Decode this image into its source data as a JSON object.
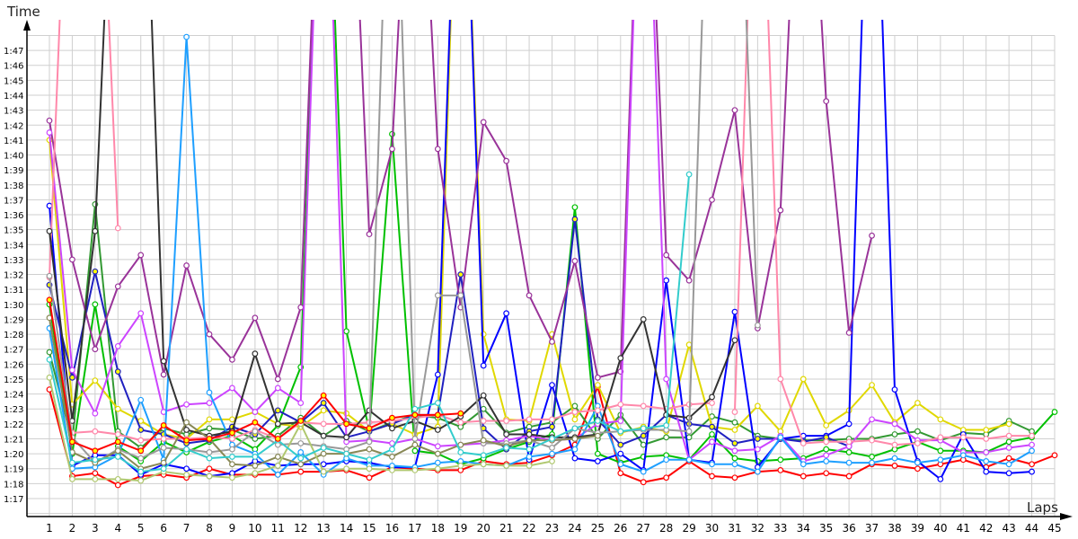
{
  "chart_data": {
    "type": "line",
    "title": "",
    "xlabel": "Laps",
    "ylabel": "Time",
    "grid": true,
    "x_ticks": [
      1,
      2,
      3,
      4,
      5,
      6,
      7,
      8,
      9,
      10,
      11,
      12,
      13,
      14,
      15,
      16,
      17,
      18,
      19,
      20,
      21,
      22,
      23,
      24,
      25,
      26,
      27,
      28,
      29,
      30,
      31,
      32,
      33,
      34,
      35,
      36,
      37,
      38,
      39,
      40,
      41,
      42,
      43,
      44,
      45
    ],
    "y_ticks": [
      "1:17",
      "1:18",
      "1:19",
      "1:20",
      "1:21",
      "1:22",
      "1:23",
      "1:24",
      "1:25",
      "1:26",
      "1:27",
      "1:28",
      "1:29",
      "1:30",
      "1:31",
      "1:32",
      "1:33",
      "1:34",
      "1:35",
      "1:36",
      "1:37",
      "1:38",
      "1:39",
      "1:40",
      "1:41",
      "1:42",
      "1:43",
      "1:44",
      "1:45",
      "1:46",
      "1:47"
    ],
    "ylim": [
      "1:15.8",
      "1:48.8"
    ],
    "xlim": [
      0,
      45
    ],
    "series": [
      {
        "color": "#ff0000",
        "marker_fill": "#ffffff",
        "values": [
          "1:24.3",
          "1:18.5",
          "1:18.7",
          "1:17.9",
          "1:18.5",
          "1:18.6",
          "1:18.4",
          "1:19.0",
          "1:18.6",
          "1:18.6",
          "1:18.6",
          "1:18.8",
          "1:18.8",
          "1:18.9",
          "1:18.4",
          "1:19.1",
          "1:19.0",
          "1:18.9",
          "1:18.9",
          "1:19.5",
          "1:19.3",
          "1:19.4",
          "1:19.9",
          "1:20.6",
          "1:24.5",
          "1:18.7",
          "1:18.1",
          "1:18.4",
          "1:19.5",
          "1:18.5",
          "1:18.4",
          "1:18.8",
          "1:18.9",
          "1:18.5",
          "1:18.7",
          "1:18.5",
          "1:19.3",
          "1:19.2",
          "1:19.0",
          "1:19.3",
          "1:19.6",
          "1:19.1",
          "1:19.7",
          "1:19.3",
          "1:19.9"
        ]
      },
      {
        "color": "#00c000",
        "marker_fill": "#ffffff",
        "values": [
          "1:30.0",
          "1:20.0",
          "1:30.0",
          "1:20.5",
          "1:19.5",
          "1:20.8",
          "1:20.1",
          "1:20.8",
          "1:21.2",
          "1:20.3",
          "1:21.9",
          "1:25.8",
          "2:10",
          "1:28.2",
          "1:21.6",
          "1:41.4",
          "1:20.2",
          "1:20.0",
          "1:19.3",
          "1:19.7",
          "1:20.3",
          "1:20.8",
          "1:21.3",
          "1:36.5",
          "1:20.0",
          "1:19.4",
          "1:19.8",
          "1:19.9",
          "1:19.6",
          "1:21.3",
          "1:19.7",
          "1:19.5",
          "1:19.6",
          "1:19.7",
          "1:20.3",
          "1:20.1",
          "1:19.8",
          "1:20.3",
          "1:20.8",
          "1:20.2",
          "1:20.2",
          "1:20.1",
          "1:20.8",
          "1:21.1",
          "1:22.8"
        ]
      },
      {
        "color": "#339933",
        "marker_fill": "#ffffff",
        "values": [
          "1:26.8",
          "1:20.8",
          "1:36.7",
          "1:21.5",
          "1:20.4",
          "1:21.7",
          "1:21.3",
          "1:21.7",
          "1:21.6",
          "1:21.0",
          "1:21.2",
          "1:22.4",
          "1:21.2",
          "1:22.2",
          "1:21.5",
          "1:22.1",
          "1:22.6",
          "1:22.4",
          "1:21.8",
          "1:23.0",
          "1:21.4",
          "1:21.8",
          "1:22.1",
          "1:23.2",
          "1:21.0",
          "1:22.6",
          "1:20.6",
          "1:21.1",
          "1:21.1",
          "1:22.5",
          "1:22.1",
          "1:21.2",
          "1:21.0",
          "1:20.9",
          "1:20.9",
          "1:21.0",
          "1:21.0",
          "1:21.3",
          "1:21.5",
          "1:20.9",
          "1:21.4",
          "1:21.3",
          "1:22.2",
          "1:21.5",
          null
        ]
      },
      {
        "color": "#e0d800",
        "marker_fill": "#ffffff",
        "values": [
          "1:41.0",
          "1:23.3",
          "1:24.9",
          "1:23.0",
          "1:22.2",
          "1:21.3",
          "1:21.0",
          "1:22.3",
          "1:22.3",
          "1:22.8",
          "1:22.0",
          "1:21.8",
          "1:22.9",
          "1:22.7",
          "1:21.5",
          "1:22.0",
          "1:21.3",
          "1:21.8",
          "2:10",
          "1:28.0",
          "1:22.3",
          "1:22.2",
          "1:28.0",
          "1:22.3",
          "1:24.6",
          "1:21.4",
          "1:21.8",
          "1:21.5",
          "1:27.3",
          "1:21.8",
          "1:21.6",
          "1:23.2",
          "1:21.5",
          "1:25.0",
          "1:21.9",
          "1:22.9",
          "1:24.6",
          "1:22.1",
          "1:23.4",
          "1:22.3",
          "1:21.6",
          "1:21.6",
          "1:22.0",
          null,
          null
        ]
      },
      {
        "color": "#0000ff",
        "marker_fill": "#ffffff",
        "values": [
          "1:36.6",
          "1:19.2",
          "1:19.9",
          "1:19.9",
          "1:18.6",
          "1:19.3",
          "1:19.0",
          "1:18.5",
          "1:18.7",
          "1:19.5",
          "1:19.2",
          "1:19.3",
          "1:19.3",
          "1:19.5",
          "1:19.4",
          "1:19.1",
          "1:19.1",
          "1:25.3",
          "2:10",
          "1:25.9",
          "1:29.4",
          "1:19.6",
          "1:24.6",
          "1:19.7",
          "1:19.5",
          "1:20.0",
          "1:18.9",
          "1:31.6",
          "1:19.6",
          "1:19.4",
          "1:29.5",
          "1:19.1",
          "1:21.0",
          "1:21.2",
          "1:21.2",
          "1:22.0",
          "2:10",
          "1:24.3",
          "1:19.5",
          "1:18.3",
          "1:21.3",
          "1:18.8",
          "1:18.7",
          "1:18.8",
          null
        ]
      },
      {
        "color": "#2020c0",
        "marker_fill": "#ffff00",
        "values": [
          "1:31.3",
          "1:25.1",
          "1:32.2",
          "1:25.5",
          "1:21.6",
          "1:21.3",
          "1:20.7",
          "1:20.9",
          "1:21.8",
          "1:21.3",
          "1:22.9",
          "1:22.1",
          "1:23.4",
          "1:21.1",
          "1:21.5",
          "1:22.0",
          "1:22.6",
          "1:22.6",
          "1:32.0",
          "1:21.7",
          "1:20.3",
          "1:21.5",
          "1:21.8",
          "1:35.7",
          "1:22.3",
          "1:20.6",
          "1:21.2",
          "1:22.6",
          "1:22.0",
          "1:21.8",
          "1:20.7",
          "1:21.0",
          "1:21.0",
          "1:20.8",
          "1:21.1",
          "1:20.5",
          null,
          null,
          null,
          null,
          null,
          null,
          null,
          null,
          null
        ]
      },
      {
        "color": "#993399",
        "marker_fill": "#ffffff",
        "values": [
          "1:42.3",
          "1:33.0",
          "1:27.0",
          "1:31.2",
          "1:33.3",
          "1:25.3",
          "1:32.6",
          "1:28.0",
          "1:26.3",
          "1:29.1",
          "1:25.0",
          "1:29.8",
          "2:10",
          "2:10",
          "1:34.7",
          "1:40.4",
          "2:10",
          "1:40.4",
          "1:29.8",
          "1:42.2",
          "1:39.6",
          "1:30.6",
          "1:27.5",
          "1:32.9",
          "1:25.1",
          "1:25.5",
          "2:10",
          "1:33.3",
          "1:31.6",
          "1:37.0",
          "1:43.0",
          "1:28.4",
          "1:36.3",
          "2:10",
          "1:43.6",
          "1:28.1",
          "1:34.6",
          null,
          null,
          null,
          null,
          null,
          null,
          null,
          null
        ]
      },
      {
        "color": "#cc44ff",
        "marker_fill": "#ffffff",
        "values": [
          "1:41.5",
          "1:25.6",
          "1:22.7",
          "1:27.2",
          "1:29.4",
          "1:22.8",
          "1:23.3",
          "1:23.4",
          "1:24.4",
          "1:22.8",
          "1:24.4",
          "1:23.4",
          "2:10",
          "1:20.8",
          "1:20.9",
          "1:20.7",
          "1:21.0",
          "1:20.5",
          "1:20.6",
          "1:20.7",
          "1:20.9",
          "1:21.2",
          "1:20.9",
          "1:21.0",
          "1:22.0",
          "1:22.2",
          "2:10",
          "1:25.0",
          "1:19.6",
          "1:20.8",
          "1:20.2",
          "1:20.3",
          "1:21.2",
          "1:19.5",
          "1:19.9",
          "1:20.5",
          "1:22.3",
          "1:22.0",
          "1:20.9",
          "1:20.9",
          "1:20.1",
          "1:20.1",
          "1:20.4",
          "1:20.6",
          null
        ]
      },
      {
        "color": "#1e9fff",
        "marker_fill": "#ffffff",
        "values": [
          "1:28.4",
          "1:19.0",
          "1:19.1",
          "1:19.9",
          "1:23.6",
          "1:19.6",
          "1:47.9",
          "1:24.1",
          "1:20.6",
          "1:20.0",
          "1:18.6",
          "1:20.1",
          "1:18.6",
          "1:19.7",
          "1:19.2",
          "1:19.2",
          "1:19.1",
          "1:19.4",
          "1:19.5",
          "1:19.3",
          "1:19.2",
          "1:19.8",
          "1:20.0",
          "1:20.3",
          "1:23.2",
          "1:19.3",
          "1:18.8",
          "1:19.6",
          "1:19.6",
          "1:19.3",
          "1:19.3",
          "1:18.8",
          "1:21.1",
          "1:19.3",
          "1:19.5",
          "1:19.4",
          "1:19.4",
          "1:19.7",
          "1:19.4",
          "1:19.6",
          "1:19.9",
          "1:19.5",
          "1:19.3",
          "1:20.2",
          null
        ]
      },
      {
        "color": "#ff88aa",
        "marker_fill": "#ffffff",
        "values": [
          "1:31.8",
          "2:10",
          "2:10",
          "1:35.1",
          null,
          null,
          null,
          null,
          null,
          null,
          null,
          null,
          null,
          null,
          null,
          null,
          null,
          null,
          null,
          null,
          null,
          null,
          null,
          null,
          null,
          null,
          null,
          null,
          null,
          null,
          "1:22.8",
          "2:10",
          "1:25.0",
          "1:20.7",
          "1:20.8",
          "1:20.8",
          "1:20.9",
          "1:20.6",
          "1:20.7",
          "1:21.1",
          "1:21.1",
          "1:21.0",
          "1:21.2",
          "1:21.2",
          null
        ]
      },
      {
        "color": "#ff88aa",
        "marker_fill": "#ffffff",
        "values": [
          null,
          "1:21.4",
          "1:21.5",
          "1:21.3",
          "1:20.9",
          "1:21.0",
          "1:21.0",
          "1:21.1",
          "1:21.0",
          "1:21.6",
          "1:21.0",
          "1:22.1",
          "1:22.0",
          "1:22.0",
          "1:22.1",
          "1:22.2",
          "1:22.4",
          "1:22.6",
          "1:22.1",
          "1:22.2",
          "1:22.2",
          "1:22.3",
          "1:22.3",
          "1:22.8",
          "1:22.9",
          "1:23.3",
          "1:23.2",
          "1:23.0",
          "1:23.3",
          "1:23.4",
          null,
          null,
          null,
          null,
          null,
          null,
          null,
          null,
          null,
          null,
          null,
          null,
          null,
          null,
          null
        ]
      },
      {
        "color": "#333333",
        "marker_fill": "#ffffff",
        "values": [
          "1:34.9",
          "1:22.2",
          "1:34.9",
          "2:10",
          "2:10",
          "1:26.2",
          "1:21.6",
          "1:21.2",
          "1:21.5",
          "1:26.7",
          "1:22.0",
          "1:22.1",
          "1:21.2",
          "1:21.1",
          "1:22.9",
          "1:21.7",
          "1:22.2",
          "1:21.6",
          "1:22.5",
          "1:23.9",
          "1:21.3",
          "1:21.3",
          "1:21.1",
          "1:21.1",
          "1:21.3",
          "1:26.4",
          "1:29.0",
          "1:22.6",
          "1:22.4",
          "1:23.8",
          "1:27.6",
          null,
          null,
          null,
          null,
          null,
          null,
          null,
          null,
          null,
          null,
          null,
          null,
          null,
          null
        ]
      },
      {
        "color": "#999999",
        "marker_fill": "#ffffff",
        "values": [
          "1:31.9",
          "1:21.1",
          "1:19.4",
          "1:20.3",
          "1:19.7",
          "1:20.4",
          "1:20.3",
          "1:20.1",
          "1:20.3",
          "1:21.5",
          "1:20.6",
          "1:20.7",
          "1:20.5",
          "1:20.3",
          "1:20.8",
          "2:10",
          "1:21.0",
          "1:30.6",
          "1:30.6",
          "1:20.7",
          "1:20.7",
          "1:20.9",
          "1:20.4",
          "1:21.7",
          "1:21.4",
          "1:21.5",
          "1:21.6",
          "1:21.6",
          "1:21.5",
          "2:10",
          "2:10",
          "1:28.6",
          null,
          null,
          null,
          null,
          null,
          null,
          null,
          null,
          null,
          null,
          null,
          null,
          null
        ]
      },
      {
        "color": "#888855",
        "marker_fill": "#ffffff",
        "values": [
          "1:29.1",
          "1:20.1",
          "1:19.4",
          "1:20.2",
          "1:19.0",
          "1:19.4",
          "1:22.1",
          "1:21.0",
          "1:19.3",
          "1:19.2",
          "1:19.8",
          "1:19.3",
          "1:20.0",
          "1:20.0",
          "1:20.3",
          "1:19.8",
          "1:20.6",
          "1:20.0",
          "1:20.6",
          "1:20.9",
          "1:20.5",
          "1:20.9",
          "1:20.9",
          "1:21.0",
          "1:21.2",
          null,
          null,
          null,
          null,
          null,
          null,
          null,
          null,
          null,
          null,
          null,
          null,
          null,
          null,
          null,
          null,
          null,
          null,
          null,
          null
        ]
      },
      {
        "color": "#b0c870",
        "marker_fill": "#ffffff",
        "values": [
          "1:25.1",
          "1:18.3",
          "1:18.3",
          "1:18.3",
          "1:18.2",
          "1:18.8",
          "1:18.6",
          "1:18.5",
          "1:18.4",
          "1:18.7",
          "1:19.2",
          "1:22.0",
          "1:18.8",
          "1:19.0",
          "1:19.0",
          "1:18.9",
          "1:18.9",
          "1:19.0",
          "1:19.2",
          "1:19.3",
          "1:19.2",
          "1:19.2",
          "1:19.5",
          null,
          null,
          null,
          null,
          null,
          null,
          null,
          null,
          null,
          null,
          null,
          null,
          null,
          null,
          null,
          null,
          null,
          null,
          null,
          null,
          null,
          null
        ]
      },
      {
        "color": "#33cccc",
        "marker_fill": "#ffffff",
        "values": [
          "1:26.3",
          "1:19.4",
          "1:19.6",
          "1:19.8",
          "1:18.8",
          "1:19.0",
          "1:20.3",
          "1:19.7",
          "1:19.8",
          "1:19.8",
          "1:20.9",
          "1:19.7",
          "1:20.4",
          "1:20.0",
          "1:19.6",
          "1:20.3",
          "1:23.0",
          "1:23.4",
          "1:20.1",
          "1:19.9",
          "1:20.4",
          "1:20.3",
          "1:21.0",
          "1:21.7",
          "1:22.2",
          "1:21.5",
          "1:21.7",
          "1:21.9",
          "1:38.7",
          null,
          null,
          null,
          null,
          null,
          null,
          null,
          null,
          null,
          null,
          null,
          null,
          null,
          null,
          null,
          null
        ]
      },
      {
        "color": "#ff0000",
        "marker_fill": "#ffff00",
        "values": [
          "1:30.3",
          "1:20.8",
          "1:20.2",
          "1:20.8",
          "1:20.2",
          "1:21.9",
          "1:20.9",
          "1:21.0",
          "1:21.4",
          "1:22.1",
          "1:21.0",
          "1:22.2",
          "1:23.9",
          "1:22.0",
          "1:21.7",
          "1:22.4",
          "1:22.6",
          "1:22.6",
          "1:22.7",
          null,
          null,
          null,
          null,
          null,
          null,
          null,
          null,
          null,
          null,
          null,
          null,
          null,
          null,
          null,
          null,
          null,
          null,
          null,
          null,
          null,
          null,
          null,
          null,
          null,
          null
        ]
      }
    ]
  }
}
